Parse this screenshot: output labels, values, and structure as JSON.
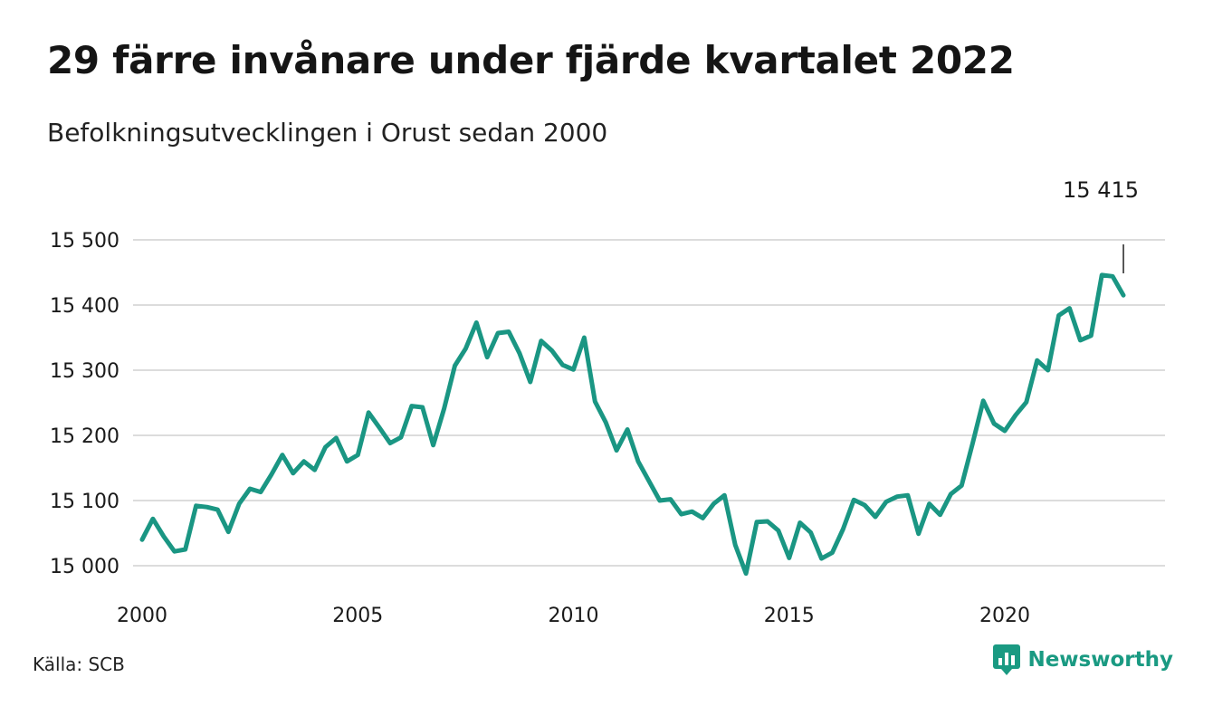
{
  "title": "29 färre invånare under fjärde kvartalet 2022",
  "subtitle": "Befolkningsutvecklingen i Orust sedan 2000",
  "source": "Källa: SCB",
  "brand": {
    "name": "Newsworthy",
    "icon": "bar-chart-logo-icon",
    "color": "#1a9a82"
  },
  "chart_data": {
    "type": "line",
    "ylim": [
      15000,
      15500
    ],
    "y_ticks": [
      15000,
      15100,
      15200,
      15300,
      15400,
      15500
    ],
    "y_tick_labels": [
      "15 000",
      "15 100",
      "15 200",
      "15 300",
      "15 400",
      "15 500"
    ],
    "xlim": [
      2000,
      2023
    ],
    "x_ticks": [
      2000,
      2005,
      2010,
      2015,
      2020
    ],
    "x_tick_labels": [
      "2000",
      "2005",
      "2010",
      "2015",
      "2020"
    ],
    "grid": true,
    "line_color": "#1a9683",
    "last_value_label": "15 415",
    "series": [
      {
        "x": [
          2000.0,
          2000.25,
          2000.5,
          2000.75,
          2001.0,
          2001.25,
          2001.5,
          2001.75,
          2002.0,
          2002.25,
          2002.5,
          2002.75,
          2003.0,
          2003.25,
          2003.5,
          2003.75,
          2004.0,
          2004.25,
          2004.5,
          2004.75,
          2005.0,
          2005.25,
          2005.5,
          2005.75,
          2006.0,
          2006.25,
          2006.5,
          2006.75,
          2007.0,
          2007.25,
          2007.5,
          2007.75,
          2008.0,
          2008.25,
          2008.5,
          2008.75,
          2009.0,
          2009.25,
          2009.5,
          2009.75,
          2010.0,
          2010.25,
          2010.5,
          2010.75,
          2011.0,
          2011.25,
          2011.5,
          2011.75,
          2012.0,
          2012.25,
          2012.5,
          2012.75,
          2013.0,
          2013.25,
          2013.5,
          2013.75,
          2014.0,
          2014.25,
          2014.5,
          2014.75,
          2015.0,
          2015.25,
          2015.5,
          2015.75,
          2016.0,
          2016.25,
          2016.5,
          2016.75,
          2017.0,
          2017.25,
          2017.5,
          2017.75,
          2018.0,
          2018.25,
          2018.5,
          2018.75,
          2019.0,
          2019.25,
          2019.5,
          2019.75,
          2020.0,
          2020.25,
          2020.5,
          2020.75,
          2021.0,
          2021.25,
          2021.5,
          2021.75,
          2022.0,
          2022.25,
          2022.5,
          2022.75
        ],
        "y": [
          15040,
          15072,
          15045,
          15022,
          15025,
          15092,
          15090,
          15086,
          15052,
          15095,
          15118,
          15113,
          15140,
          15170,
          15142,
          15160,
          15147,
          15182,
          15196,
          15160,
          15170,
          15235,
          15212,
          15188,
          15197,
          15245,
          15243,
          15185,
          15241,
          15307,
          15333,
          15373,
          15320,
          15357,
          15359,
          15326,
          15282,
          15345,
          15330,
          15308,
          15301,
          15350,
          15252,
          15220,
          15177,
          15209,
          15160,
          15130,
          15100,
          15102,
          15079,
          15083,
          15073,
          15095,
          15108,
          15032,
          14988,
          15067,
          15068,
          15054,
          15012,
          15066,
          15051,
          15011,
          15020,
          15056,
          15101,
          15093,
          15075,
          15098,
          15106,
          15108,
          15049,
          15095,
          15078,
          15110,
          15123,
          15187,
          15253,
          15218,
          15207,
          15231,
          15251,
          15315,
          15300,
          15384,
          15395,
          15346,
          15353,
          15446,
          15444,
          15415
        ]
      }
    ]
  }
}
